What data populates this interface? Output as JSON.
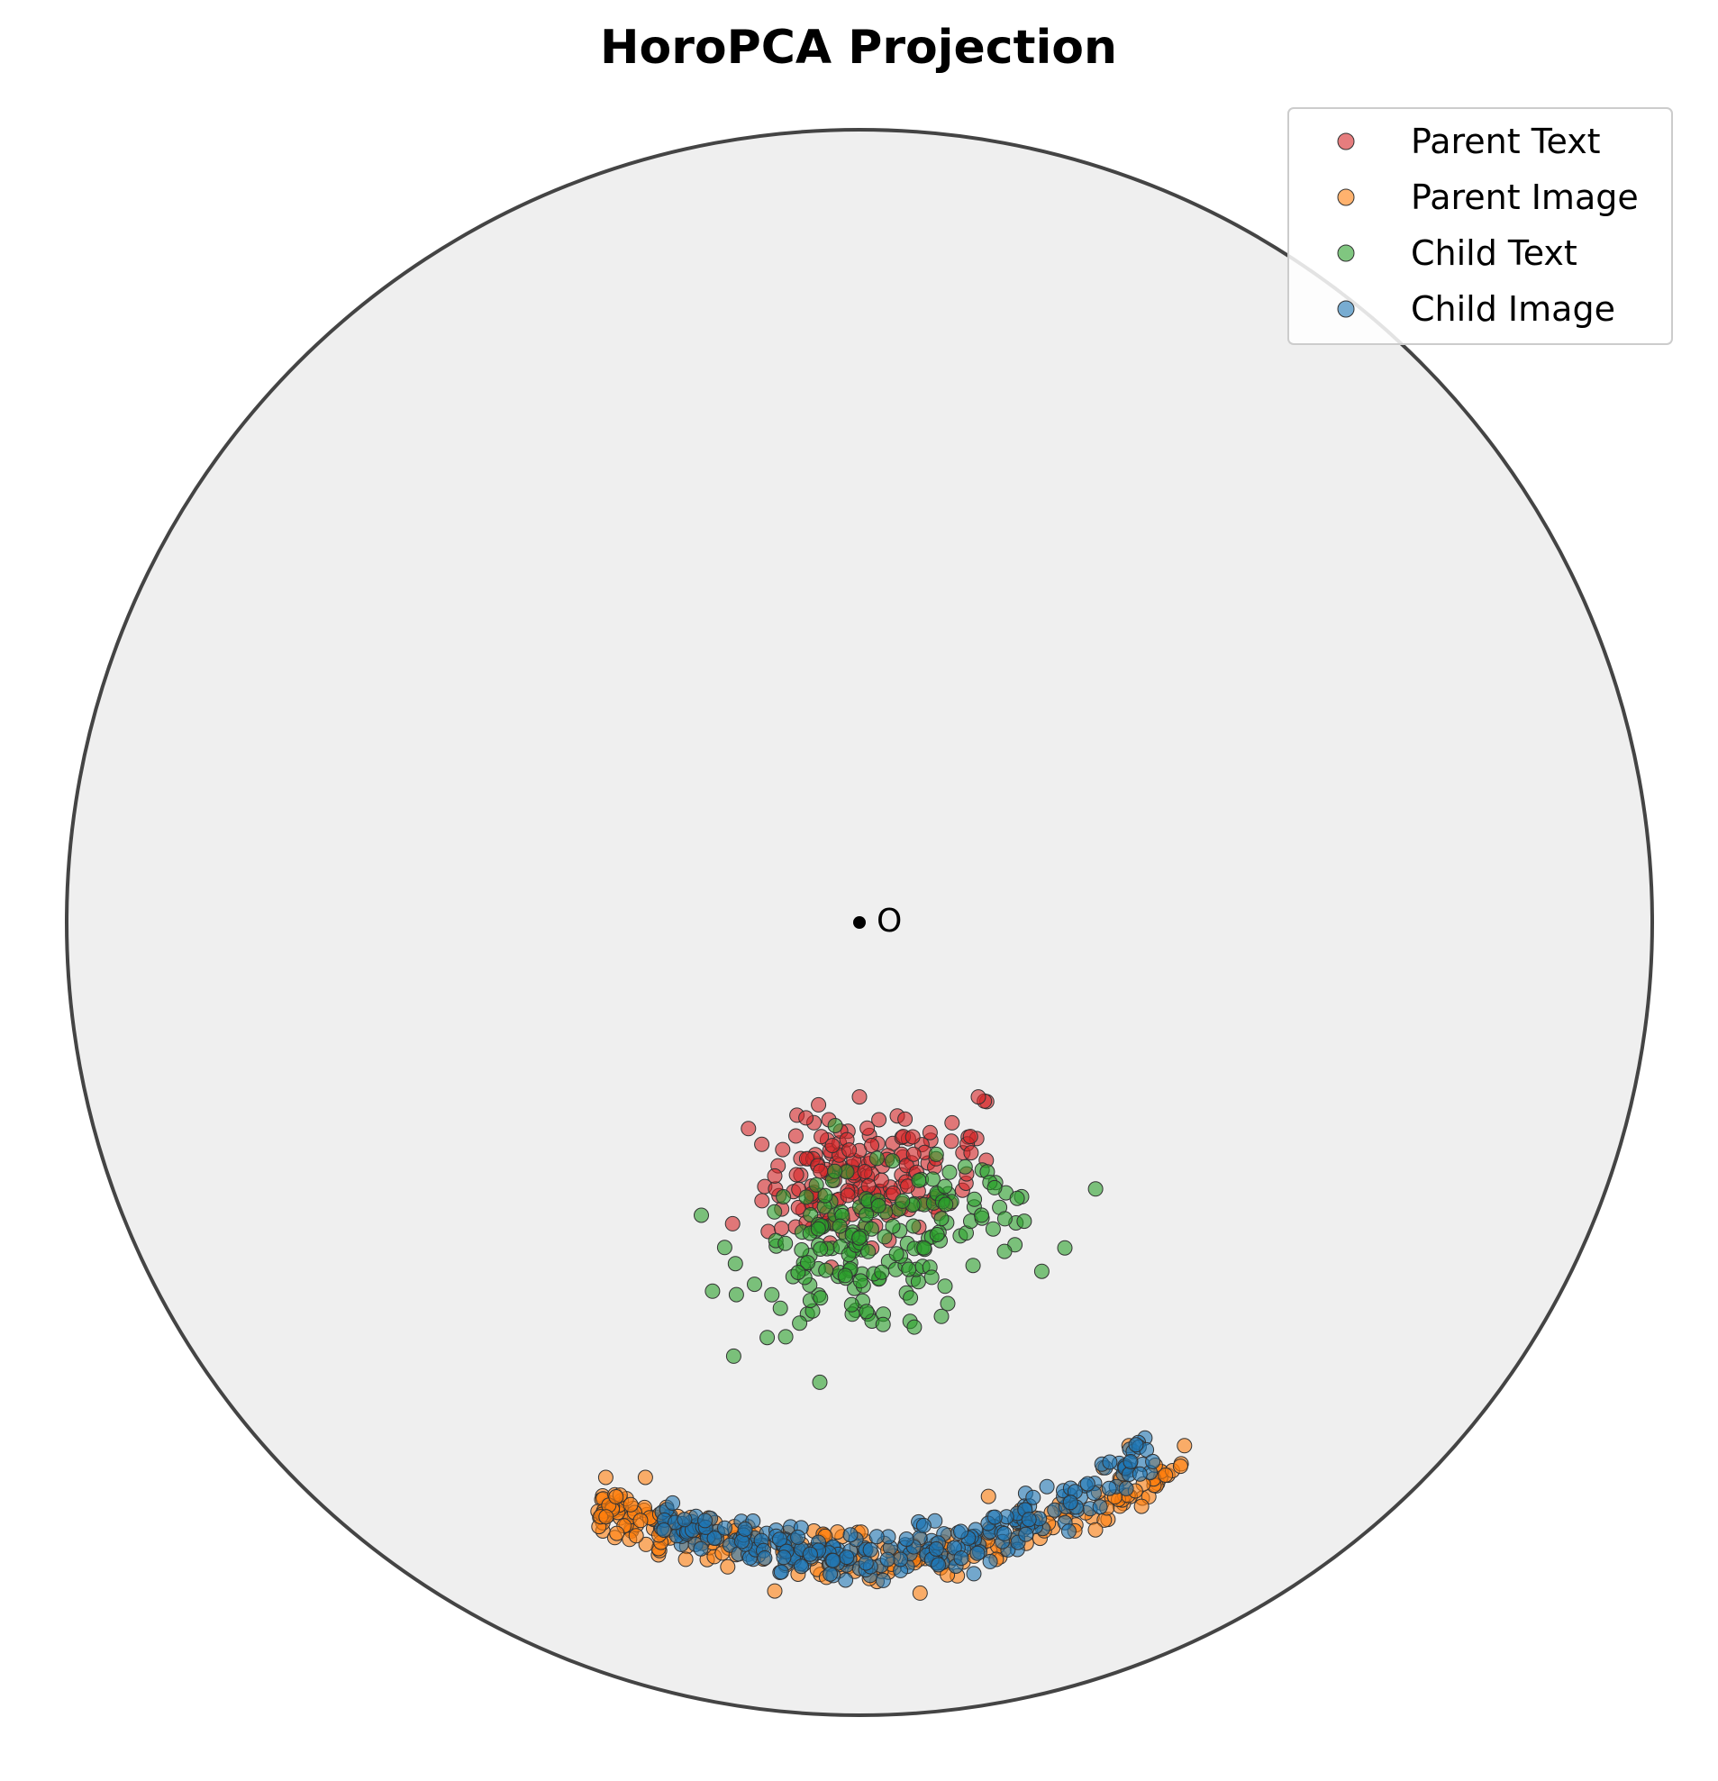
{
  "chart_data": {
    "type": "scatter",
    "title": "HoroPCA Projection",
    "xlabel": "",
    "ylabel": "",
    "xlim": [
      -1.0,
      1.0
    ],
    "ylim": [
      -1.0,
      1.0
    ],
    "axes_visible": false,
    "grid": false,
    "legend_position": "top-right",
    "disk": {
      "fill": "#efefef",
      "stroke": "#444444"
    },
    "origin": {
      "x": 0.0,
      "y": 0.0,
      "label": "O"
    },
    "series": [
      {
        "name": "Parent Text",
        "color": "#d62728",
        "clusters": [
          {
            "n": 120,
            "cx": -0.02,
            "cy": -0.33,
            "sx": 0.05,
            "sy": 0.04
          },
          {
            "n": 50,
            "cx": 0.07,
            "cy": -0.3,
            "sx": 0.06,
            "sy": 0.05
          }
        ],
        "extra_points": [
          [
            0.0,
            -0.22
          ],
          [
            0.15,
            -0.22
          ],
          [
            -0.14,
            -0.26
          ],
          [
            0.14,
            -0.27
          ],
          [
            -0.16,
            -0.38
          ],
          [
            0.16,
            -0.3
          ]
        ]
      },
      {
        "name": "Parent Image",
        "color": "#ff7f0e",
        "arc": {
          "n": 260,
          "x_range": [
            -0.33,
            0.41
          ],
          "y_at_min": -0.74,
          "y_at_center": -0.8,
          "y_at_max": -0.68,
          "spread": 0.015
        },
        "extra_points": [
          [
            -0.32,
            -0.7
          ],
          [
            -0.27,
            -0.7
          ],
          [
            0.41,
            -0.66
          ],
          [
            0.34,
            -0.66
          ]
        ]
      },
      {
        "name": "Child Text",
        "color": "#2ca02c",
        "clusters": [
          {
            "n": 150,
            "cx": 0.0,
            "cy": -0.42,
            "sx": 0.07,
            "sy": 0.05
          },
          {
            "n": 40,
            "cx": 0.14,
            "cy": -0.36,
            "sx": 0.05,
            "sy": 0.03
          }
        ],
        "extra_points": [
          [
            -0.05,
            -0.58
          ],
          [
            0.23,
            -0.44
          ],
          [
            -0.17,
            -0.41
          ]
        ]
      },
      {
        "name": "Child Image",
        "color": "#1f77b4",
        "arc": {
          "n": 260,
          "x_range": [
            -0.25,
            0.37
          ],
          "y_at_min": -0.75,
          "y_at_center": -0.8,
          "y_at_max": -0.66,
          "spread": 0.015
        },
        "extra_points": [
          [
            0.03,
            -0.83
          ],
          [
            -0.2,
            -0.79
          ],
          [
            0.37,
            -0.68
          ]
        ]
      }
    ]
  }
}
